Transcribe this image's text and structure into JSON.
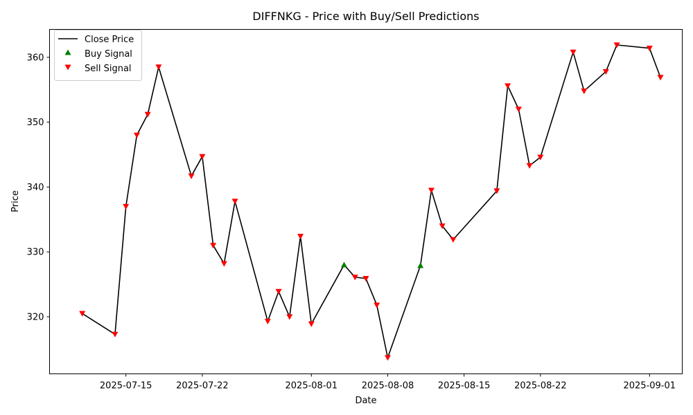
{
  "chart_data": {
    "type": "line",
    "title": "DIFFNKG - Price with Buy/Sell Predictions",
    "xlabel": "Date",
    "ylabel": "Price",
    "x_ticks": [
      "2025-07-15",
      "2025-07-22",
      "2025-08-01",
      "2025-08-08",
      "2025-08-15",
      "2025-08-22",
      "2025-09-01"
    ],
    "y_ticks": [
      320,
      330,
      340,
      350,
      360
    ],
    "xlim": [
      "2025-07-08",
      "2025-09-04"
    ],
    "ylim": [
      311.2,
      364.3
    ],
    "grid": false,
    "legend_position": "top-left",
    "legend": {
      "close": "Close Price",
      "buy": "Buy Signal",
      "sell": "Sell Signal"
    },
    "colors": {
      "close": "#000000",
      "buy": "#008000",
      "sell": "#ff0000"
    },
    "series": [
      {
        "name": "Close Price",
        "points": [
          {
            "date": "2025-07-11",
            "value": 320.5,
            "signal": "sell"
          },
          {
            "date": "2025-07-14",
            "value": 317.3,
            "signal": "sell"
          },
          {
            "date": "2025-07-15",
            "value": 337.0,
            "signal": "sell"
          },
          {
            "date": "2025-07-16",
            "value": 348.0,
            "signal": "sell"
          },
          {
            "date": "2025-07-17",
            "value": 351.2,
            "signal": "sell"
          },
          {
            "date": "2025-07-18",
            "value": 358.5,
            "signal": "sell"
          },
          {
            "date": "2025-07-21",
            "value": 341.7,
            "signal": "sell"
          },
          {
            "date": "2025-07-22",
            "value": 344.7,
            "signal": "sell"
          },
          {
            "date": "2025-07-23",
            "value": 331.0,
            "signal": "sell"
          },
          {
            "date": "2025-07-24",
            "value": 328.2,
            "signal": "sell"
          },
          {
            "date": "2025-07-25",
            "value": 337.8,
            "signal": "sell"
          },
          {
            "date": "2025-07-28",
            "value": 319.3,
            "signal": "sell"
          },
          {
            "date": "2025-07-29",
            "value": 323.9,
            "signal": "sell"
          },
          {
            "date": "2025-07-30",
            "value": 320.0,
            "signal": "sell"
          },
          {
            "date": "2025-07-31",
            "value": 332.4,
            "signal": "sell"
          },
          {
            "date": "2025-08-01",
            "value": 318.9,
            "signal": "sell"
          },
          {
            "date": "2025-08-04",
            "value": 328.0,
            "signal": "buy"
          },
          {
            "date": "2025-08-05",
            "value": 326.1,
            "signal": "sell"
          },
          {
            "date": "2025-08-06",
            "value": 325.9,
            "signal": "sell"
          },
          {
            "date": "2025-08-07",
            "value": 321.8,
            "signal": "sell"
          },
          {
            "date": "2025-08-08",
            "value": 313.7,
            "signal": "sell"
          },
          {
            "date": "2025-08-11",
            "value": 327.9,
            "signal": "buy"
          },
          {
            "date": "2025-08-12",
            "value": 339.5,
            "signal": "sell"
          },
          {
            "date": "2025-08-13",
            "value": 334.0,
            "signal": "sell"
          },
          {
            "date": "2025-08-14",
            "value": 331.9,
            "signal": "sell"
          },
          {
            "date": "2025-08-18",
            "value": 339.4,
            "signal": "sell"
          },
          {
            "date": "2025-08-19",
            "value": 355.6,
            "signal": "sell"
          },
          {
            "date": "2025-08-20",
            "value": 352.0,
            "signal": "sell"
          },
          {
            "date": "2025-08-21",
            "value": 343.3,
            "signal": "sell"
          },
          {
            "date": "2025-08-22",
            "value": 344.6,
            "signal": "sell"
          },
          {
            "date": "2025-08-25",
            "value": 360.8,
            "signal": "sell"
          },
          {
            "date": "2025-08-26",
            "value": 354.8,
            "signal": "sell"
          },
          {
            "date": "2025-08-28",
            "value": 357.8,
            "signal": "sell"
          },
          {
            "date": "2025-08-29",
            "value": 361.9,
            "signal": "sell"
          },
          {
            "date": "2025-09-01",
            "value": 361.4,
            "signal": "sell"
          },
          {
            "date": "2025-09-02",
            "value": 356.9,
            "signal": "sell"
          }
        ]
      }
    ]
  }
}
